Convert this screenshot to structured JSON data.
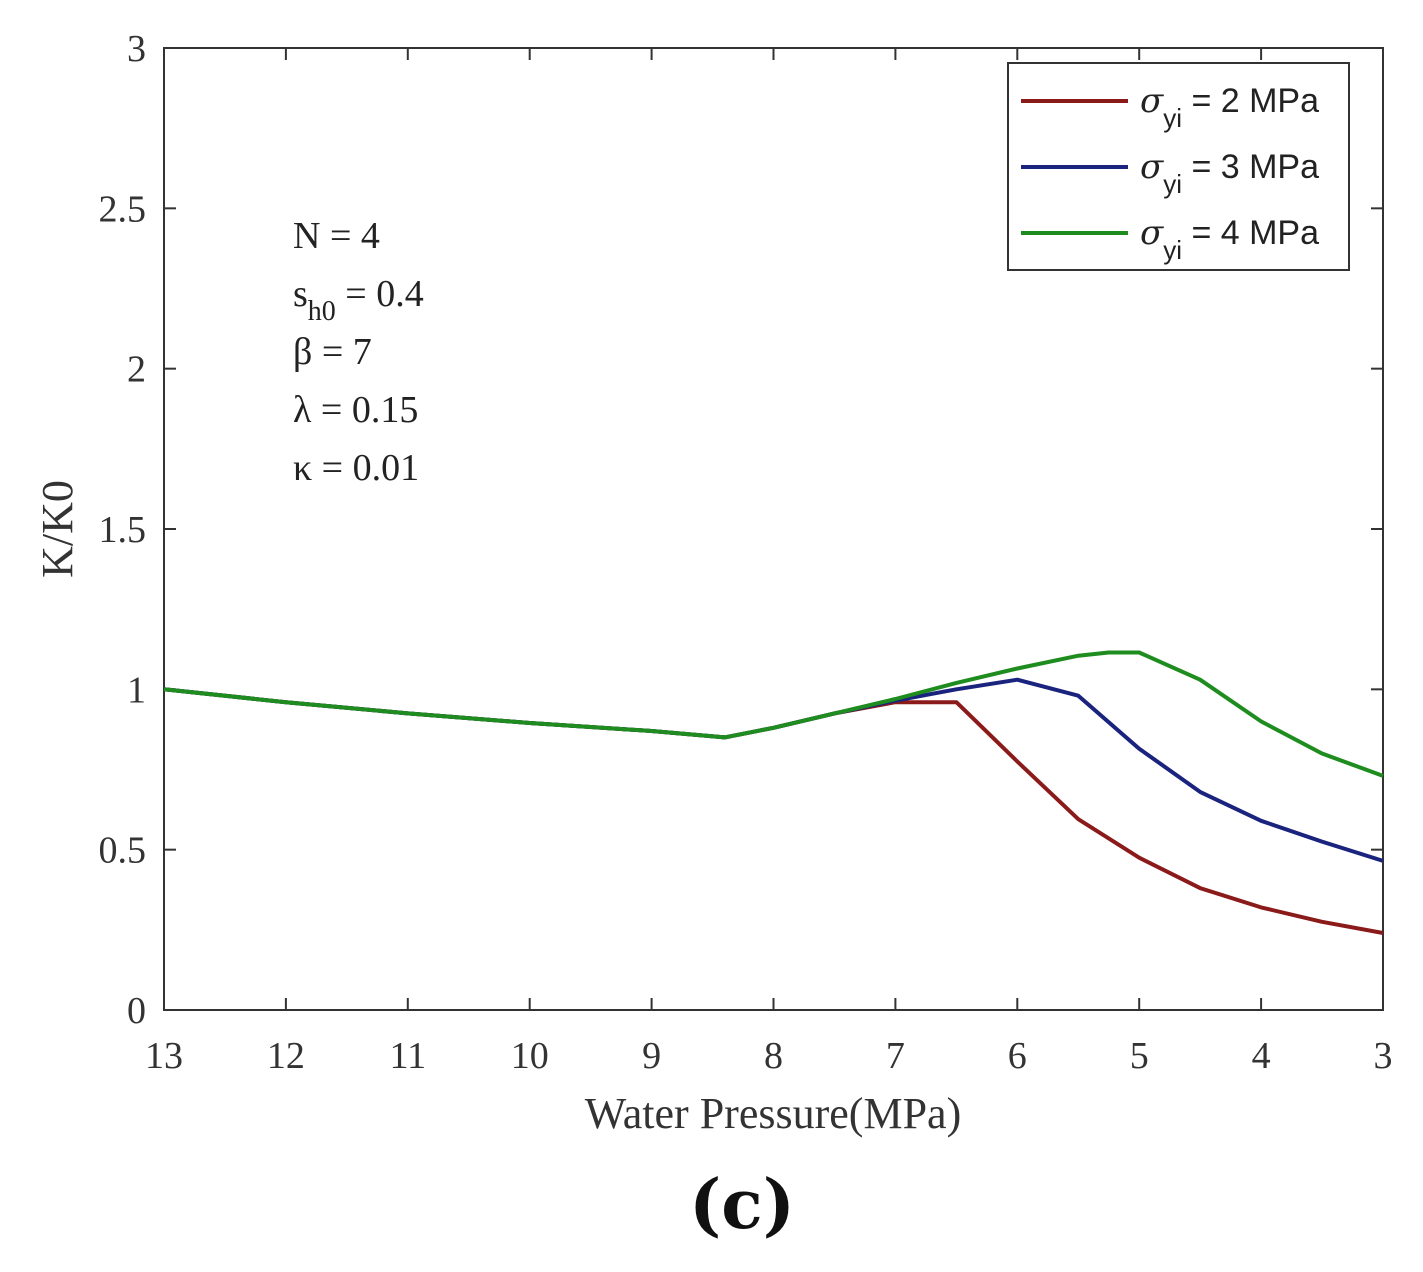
{
  "chart_data": {
    "type": "line",
    "xlabel": "Water Pressure(MPa)",
    "ylabel": "K/K0",
    "xlim": [
      13,
      3
    ],
    "ylim": [
      0,
      3
    ],
    "x_reversed": true,
    "x_ticks": [
      "13",
      "12",
      "11",
      "10",
      "9",
      "8",
      "7",
      "6",
      "5",
      "4",
      "3"
    ],
    "y_ticks": [
      "0",
      "0.5",
      "1",
      "1.5",
      "2",
      "2.5",
      "3"
    ],
    "grid": false,
    "legend_position": "top-right",
    "panel_label": "(c)",
    "annotations": [
      {
        "main": "N = 4"
      },
      {
        "main": "s",
        "sub": "h0",
        "tail": " = 0.4"
      },
      {
        "main": "β = 7"
      },
      {
        "main": "λ  = 0.15"
      },
      {
        "main": "κ = 0.01"
      }
    ],
    "series": [
      {
        "symbol": "σ",
        "sub": "yi",
        "label_tail": " = 2 MPa",
        "color": "#8b1a1a",
        "x": [
          13,
          12,
          11,
          10,
          9,
          8.4,
          8,
          7.5,
          7,
          6.5,
          6,
          5.5,
          5,
          4.5,
          4,
          3.5,
          3
        ],
        "y": [
          1.0,
          0.96,
          0.925,
          0.895,
          0.87,
          0.85,
          0.88,
          0.925,
          0.96,
          0.96,
          0.775,
          0.595,
          0.475,
          0.38,
          0.32,
          0.275,
          0.24
        ]
      },
      {
        "symbol": "σ",
        "sub": "yi",
        "label_tail": " = 3 MPa",
        "color": "#1a237e",
        "x": [
          13,
          12,
          11,
          10,
          9,
          8.4,
          8,
          7.5,
          7,
          6.5,
          6,
          5.5,
          5,
          4.5,
          4,
          3.5,
          3
        ],
        "y": [
          1.0,
          0.96,
          0.925,
          0.895,
          0.87,
          0.85,
          0.88,
          0.925,
          0.965,
          1.0,
          1.03,
          0.98,
          0.815,
          0.68,
          0.59,
          0.525,
          0.465
        ]
      },
      {
        "symbol": "σ",
        "sub": "yi",
        "label_tail": " = 4 MPa",
        "color": "#1e8c1e",
        "x": [
          13,
          12,
          11,
          10,
          9,
          8.4,
          8,
          7.5,
          7,
          6.5,
          6,
          5.5,
          5.25,
          5,
          4.5,
          4,
          3.5,
          3
        ],
        "y": [
          1.0,
          0.96,
          0.925,
          0.895,
          0.87,
          0.85,
          0.88,
          0.925,
          0.97,
          1.02,
          1.065,
          1.105,
          1.115,
          1.115,
          1.03,
          0.9,
          0.8,
          0.73
        ]
      }
    ]
  }
}
